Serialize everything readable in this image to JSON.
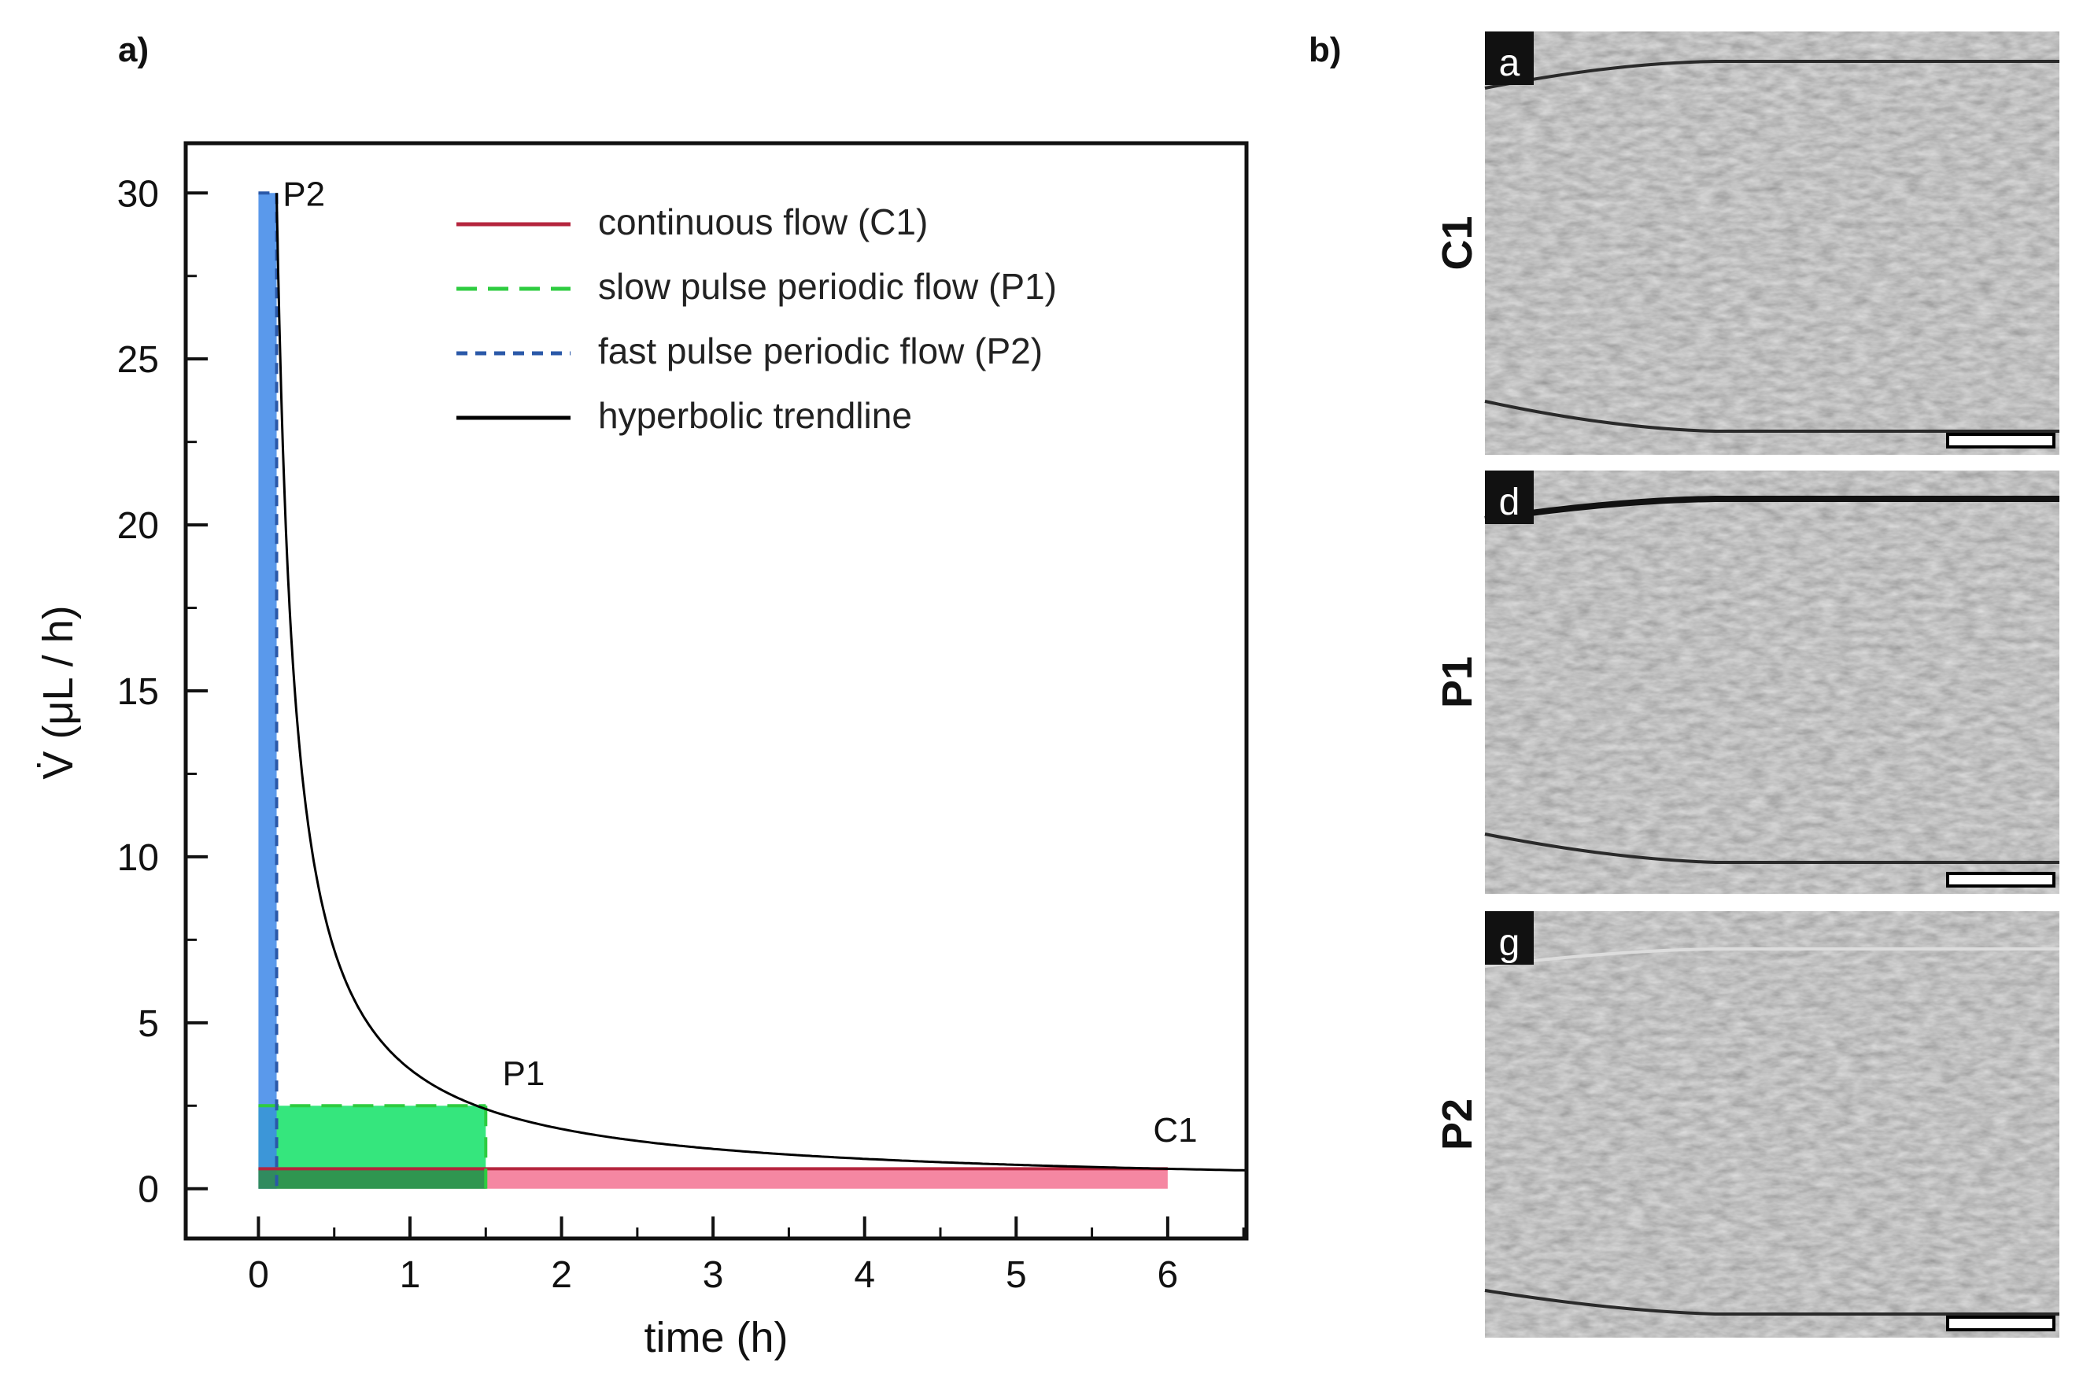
{
  "panels": {
    "a_label": "a)",
    "b_label": "b)"
  },
  "chart_data": {
    "type": "line",
    "xlabel": "time (h)",
    "ylabel": "V̇ (μL / h)",
    "xlim": [
      -0.48,
      6.52
    ],
    "ylim": [
      -1.5,
      31.5
    ],
    "x_ticks": [
      0,
      1,
      2,
      3,
      4,
      5,
      6
    ],
    "y_ticks": [
      0,
      5,
      10,
      15,
      20,
      25,
      30
    ],
    "grid": false,
    "legend_position": "top-right",
    "series": [
      {
        "name": "continuous flow (C1)",
        "color": "#b5253d",
        "dash": "solid",
        "fill_color": "#f47a98",
        "points": [
          [
            0,
            0.6
          ],
          [
            6,
            0.6
          ]
        ],
        "region": {
          "x": [
            0,
            6
          ],
          "y": [
            0,
            0.6
          ]
        }
      },
      {
        "name": "slow pulse periodic flow (P1)",
        "color": "#2ecc40",
        "dash": "long",
        "fill_color": "#1fe36f",
        "points": [
          [
            0,
            2.5
          ],
          [
            1.5,
            2.5
          ]
        ],
        "region": {
          "x": [
            0,
            1.5
          ],
          "y": [
            0,
            2.5
          ]
        }
      },
      {
        "name": "fast pulse periodic flow (P2)",
        "color": "#2a58a8",
        "dash": "short",
        "fill_color": "#3d87e8",
        "points": [
          [
            0,
            30
          ],
          [
            0.12,
            30
          ]
        ],
        "region": {
          "x": [
            0,
            0.12
          ],
          "y": [
            0,
            30
          ]
        }
      },
      {
        "name": "hyperbolic trendline",
        "color": "#000000",
        "dash": "solid",
        "function": "y = 3.6 / x",
        "x_range": [
          0.12,
          6.52
        ]
      }
    ],
    "annotations": [
      {
        "text": "P2",
        "x": 0.3,
        "y": 30
      },
      {
        "text": "P1",
        "x": 1.75,
        "y": 3.5
      },
      {
        "text": "C1",
        "x": 6.05,
        "y": 1.8
      }
    ]
  },
  "micrographs": [
    {
      "letter": "a",
      "row_label": "C1"
    },
    {
      "letter": "d",
      "row_label": "P1"
    },
    {
      "letter": "g",
      "row_label": "P2"
    }
  ]
}
